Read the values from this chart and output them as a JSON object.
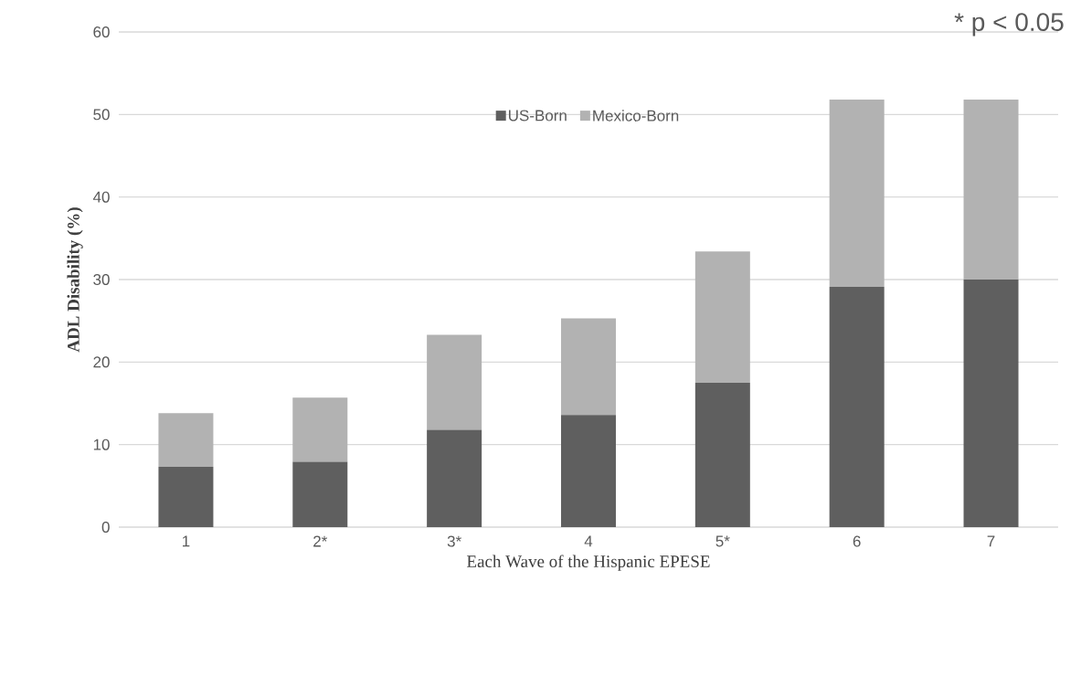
{
  "chart_data": {
    "type": "bar",
    "stacked": true,
    "categories": [
      "1",
      "2*",
      "3*",
      "4",
      "5*",
      "6",
      "7"
    ],
    "series": [
      {
        "name": "US-Born",
        "color": "#5f5f5f",
        "values": [
          7.3,
          7.9,
          11.8,
          13.6,
          17.5,
          29.1,
          30.0
        ]
      },
      {
        "name": "Mexico-Born",
        "color": "#b2b2b2",
        "values": [
          6.5,
          7.8,
          11.5,
          11.7,
          15.9,
          22.7,
          21.8
        ]
      }
    ],
    "ylim": [
      0,
      60
    ],
    "yticks": [
      0,
      10,
      20,
      30,
      40,
      50,
      60
    ],
    "grid": "y",
    "legend": "top",
    "xlabel": "Each Wave of the Hispanic EPESE",
    "ylabel": "ADL Disability (%)",
    "annotations": [
      "* p < 0.05"
    ]
  }
}
